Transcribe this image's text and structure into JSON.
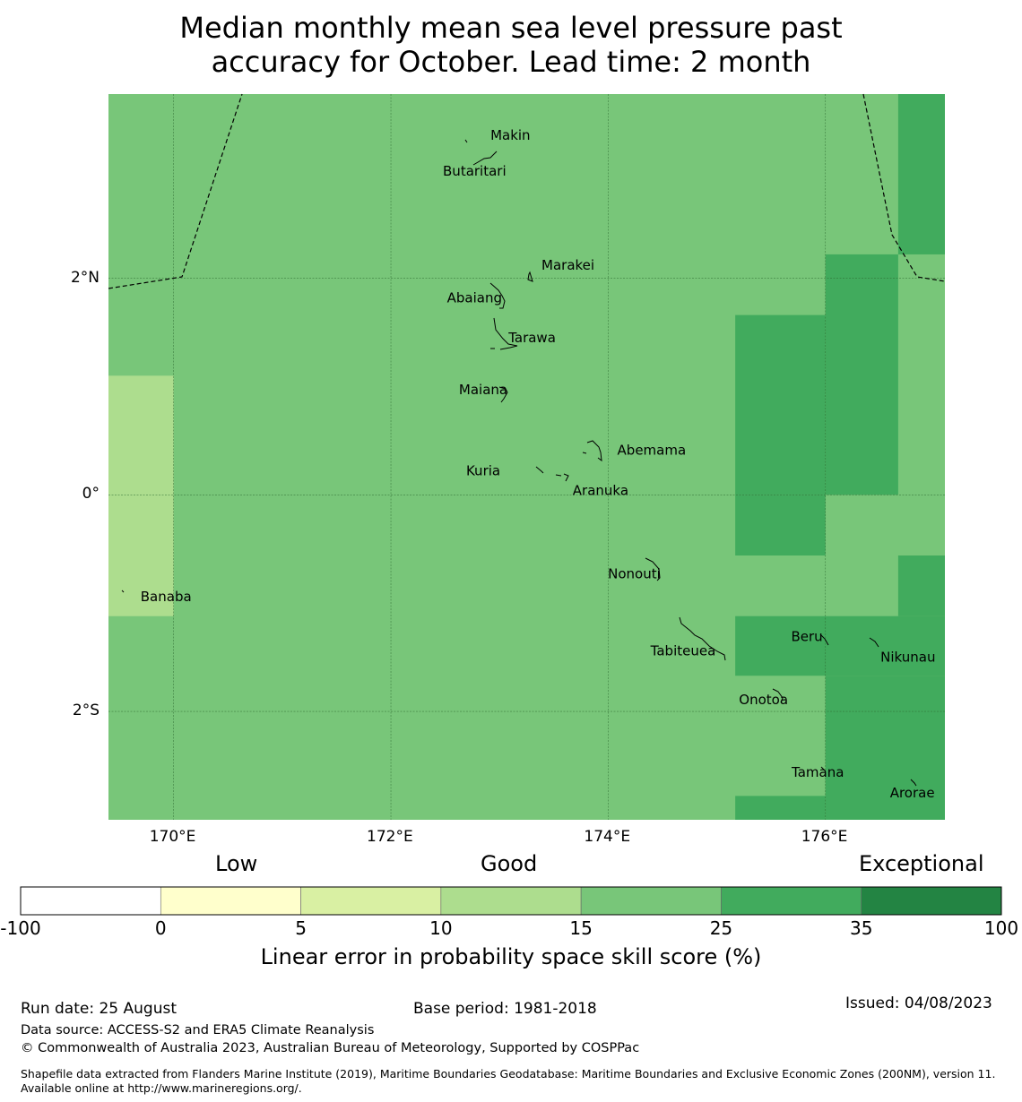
{
  "title": {
    "line1": "Median monthly mean sea level pressure past",
    "line2": "accuracy for October. Lead time: 2 month"
  },
  "map": {
    "lon_range": [
      169.4,
      177.1
    ],
    "lat_range": [
      -3.0,
      3.7
    ],
    "lon_ticks": [
      {
        "value": 170,
        "label": "170°E"
      },
      {
        "value": 172,
        "label": "172°E"
      },
      {
        "value": 174,
        "label": "174°E"
      },
      {
        "value": 176,
        "label": "176°E"
      }
    ],
    "lat_ticks": [
      {
        "value": 2,
        "label": "2°N"
      },
      {
        "value": 0,
        "label": "0°"
      },
      {
        "value": -2,
        "label": "2°S"
      }
    ],
    "grid_lines": true,
    "base_color": "#78c679",
    "cells": [
      {
        "lon": [
          169.4,
          170.0
        ],
        "lat": [
          -1.12,
          1.1
        ],
        "color": "#addd8e"
      },
      {
        "lon": [
          176.67,
          177.1
        ],
        "lat": [
          2.22,
          3.7
        ],
        "color": "#41ab5d"
      },
      {
        "lon": [
          176.0,
          176.67
        ],
        "lat": [
          0.0,
          2.22
        ],
        "color": "#41ab5d"
      },
      {
        "lon": [
          175.17,
          176.0
        ],
        "lat": [
          0.0,
          1.66
        ],
        "color": "#41ab5d"
      },
      {
        "lon": [
          175.17,
          176.0
        ],
        "lat": [
          -0.56,
          0.0
        ],
        "color": "#41ab5d"
      },
      {
        "lon": [
          176.67,
          177.1
        ],
        "lat": [
          -1.12,
          -0.56
        ],
        "color": "#41ab5d"
      },
      {
        "lon": [
          175.17,
          177.1
        ],
        "lat": [
          -1.67,
          -1.12
        ],
        "color": "#41ab5d"
      },
      {
        "lon": [
          176.0,
          177.1
        ],
        "lat": [
          -3.0,
          -1.67
        ],
        "color": "#41ab5d"
      },
      {
        "lon": [
          175.17,
          176.0
        ],
        "lat": [
          -3.0,
          -2.78
        ],
        "color": "#41ab5d"
      }
    ],
    "islands": [
      {
        "name": "Makin",
        "lon": 173.1,
        "lat": 3.32
      },
      {
        "name": "Butaritari",
        "lon": 172.77,
        "lat": 2.99
      },
      {
        "name": "Marakei",
        "lon": 173.63,
        "lat": 2.12
      },
      {
        "name": "Abaiang",
        "lon": 172.77,
        "lat": 1.82
      },
      {
        "name": "Tarawa",
        "lon": 173.3,
        "lat": 1.45
      },
      {
        "name": "Maiana",
        "lon": 172.85,
        "lat": 0.97
      },
      {
        "name": "Abemama",
        "lon": 174.4,
        "lat": 0.41
      },
      {
        "name": "Kuria",
        "lon": 172.85,
        "lat": 0.22
      },
      {
        "name": "Aranuka",
        "lon": 173.93,
        "lat": 0.04
      },
      {
        "name": "Nonouti",
        "lon": 174.24,
        "lat": -0.73
      },
      {
        "name": "Banaba",
        "lon": 169.93,
        "lat": -0.94
      },
      {
        "name": "Tabiteuea",
        "lon": 174.69,
        "lat": -1.44
      },
      {
        "name": "Beru",
        "lon": 175.83,
        "lat": -1.31
      },
      {
        "name": "Nikunau",
        "lon": 176.76,
        "lat": -1.5
      },
      {
        "name": "Onotoa",
        "lon": 175.43,
        "lat": -1.89
      },
      {
        "name": "Tamana",
        "lon": 175.93,
        "lat": -2.56
      },
      {
        "name": "Arorae",
        "lon": 176.8,
        "lat": -2.75
      }
    ]
  },
  "colorbar": {
    "headings": {
      "low": "Low",
      "good": "Good",
      "exceptional": "Exceptional"
    },
    "ticks": [
      "-100",
      "0",
      "5",
      "10",
      "15",
      "25",
      "35",
      "100"
    ],
    "colors": [
      "#ffffff",
      "#ffffcc",
      "#d9f0a3",
      "#addd8e",
      "#78c679",
      "#41ab5d",
      "#238443"
    ],
    "label": "Linear error in probability space skill score (%)"
  },
  "footer": {
    "run_date": "Run date: 25 August",
    "base_period": "Base period: 1981-2018",
    "issued": "Issued: 04/08/2023",
    "data_source": "Data source: ACCESS-S2 and ERA5 Climate Reanalysis",
    "copyright": "© Commonwealth of Australia 2023, Australian Bureau of Meteorology, Supported by COSPPac",
    "shapefile": "Shapefile data extracted from Flanders Marine Institute (2019), Maritime Boundaries Geodatabase: Maritime Boundaries and Exclusive Economic Zones (200NM), version 11. Available online at http://www.marineregions.org/."
  }
}
